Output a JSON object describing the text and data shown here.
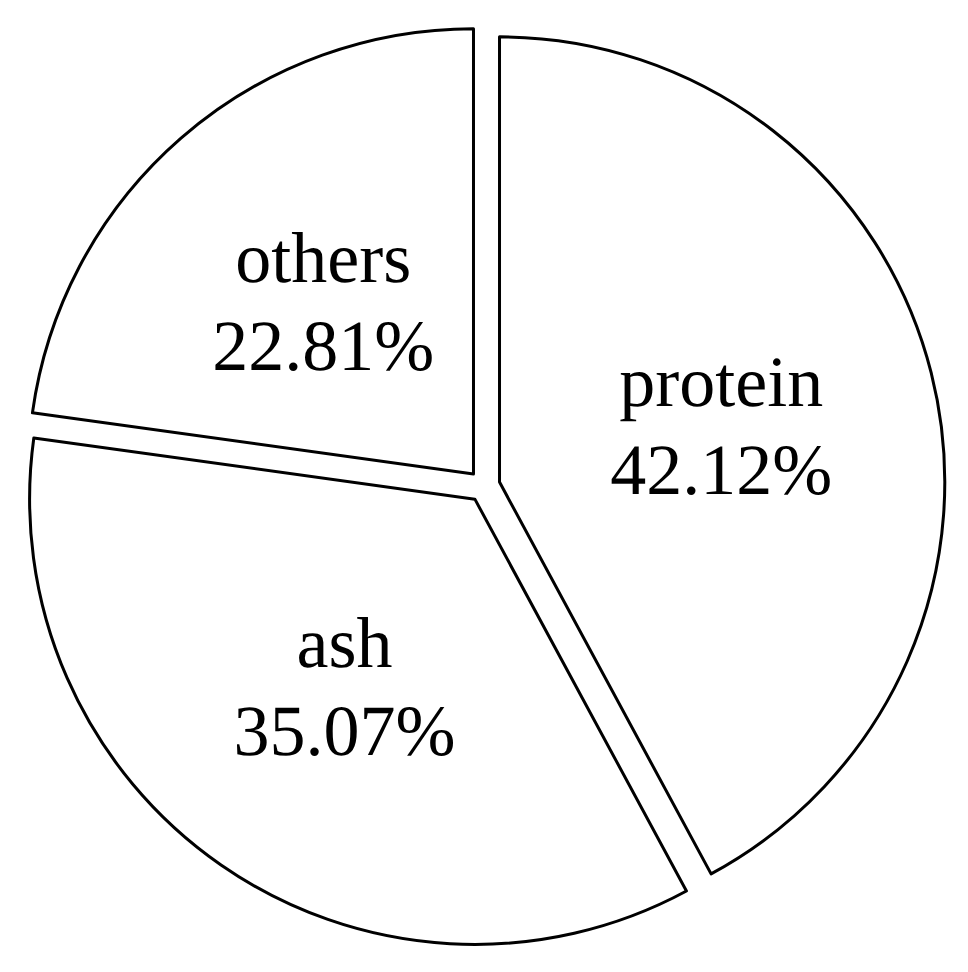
{
  "chart_data": {
    "type": "pie",
    "categories": [
      "protein",
      "ash",
      "others"
    ],
    "values": [
      42.12,
      35.07,
      22.81
    ],
    "colors": [
      "#ffffff",
      "#ffffff",
      "#ffffff"
    ],
    "value_labels": [
      "42.12%",
      "35.07%",
      "22.81%"
    ],
    "legend": false
  }
}
